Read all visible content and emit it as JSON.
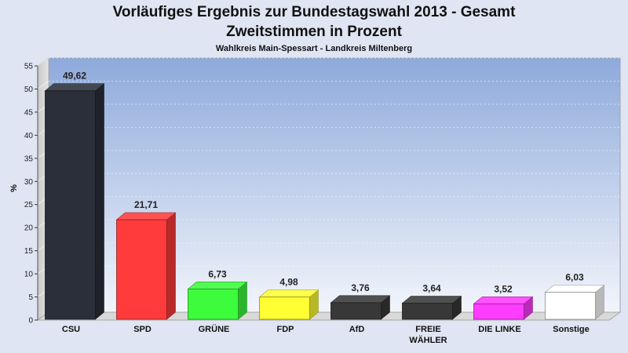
{
  "chart_data": {
    "type": "bar",
    "title": "Vorläufiges Ergebnis zur Bundestagswahl 2013 - Gesamt",
    "title_line2": "Zweitstimmen in Prozent",
    "subtitle": "Wahlkreis Main-Spessart - Landkreis Miltenberg",
    "ylabel": "%",
    "xlabel": "",
    "ylim": [
      0,
      55
    ],
    "yticks": [
      "0",
      "5",
      "10",
      "15",
      "20",
      "25",
      "30",
      "35",
      "40",
      "45",
      "50",
      "55"
    ],
    "grid": true,
    "categories": [
      "CSU",
      "SPD",
      "GRÜNE",
      "FDP",
      "AfD",
      "FREIE WÄHLER",
      "DIE LINKE",
      "Sonstige"
    ],
    "category_lines": [
      [
        "CSU"
      ],
      [
        "SPD"
      ],
      [
        "GRÜNE"
      ],
      [
        "FDP"
      ],
      [
        "AfD"
      ],
      [
        "FREIE",
        "WÄHLER"
      ],
      [
        "DIE LINKE"
      ],
      [
        "Sonstige"
      ]
    ],
    "values": [
      49.62,
      21.71,
      6.73,
      4.98,
      3.76,
      3.64,
      3.52,
      6.03
    ],
    "value_labels": [
      "49,62",
      "21,71",
      "6,73",
      "4,98",
      "3,76",
      "3,64",
      "3,52",
      "6,03"
    ],
    "colors": [
      "#2b2f3a",
      "#ff3b3b",
      "#3cfc3c",
      "#ffff33",
      "#383838",
      "#383838",
      "#ff3cff",
      "#ffffff"
    ]
  }
}
